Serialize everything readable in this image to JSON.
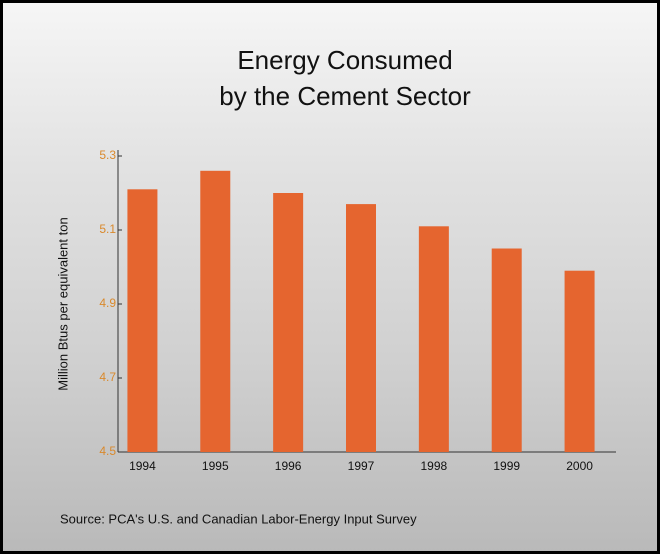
{
  "chart_data": {
    "type": "bar",
    "title": [
      "Energy Consumed",
      "by the Cement Sector"
    ],
    "ylabel": "Million Btus per equivalent ton",
    "source": "Source: PCA's U.S. and Canadian Labor-Energy Input Survey",
    "categories": [
      "1994",
      "1995",
      "1996",
      "1997",
      "1998",
      "1999",
      "2000"
    ],
    "values": [
      5.21,
      5.26,
      5.2,
      5.17,
      5.11,
      5.05,
      4.99
    ],
    "color": "#e5652f",
    "tick_color": "#d9892c",
    "ylim": [
      4.5,
      5.3
    ],
    "yticks": [
      4.5,
      4.7,
      4.9,
      5.1,
      5.3
    ],
    "grid": false
  }
}
